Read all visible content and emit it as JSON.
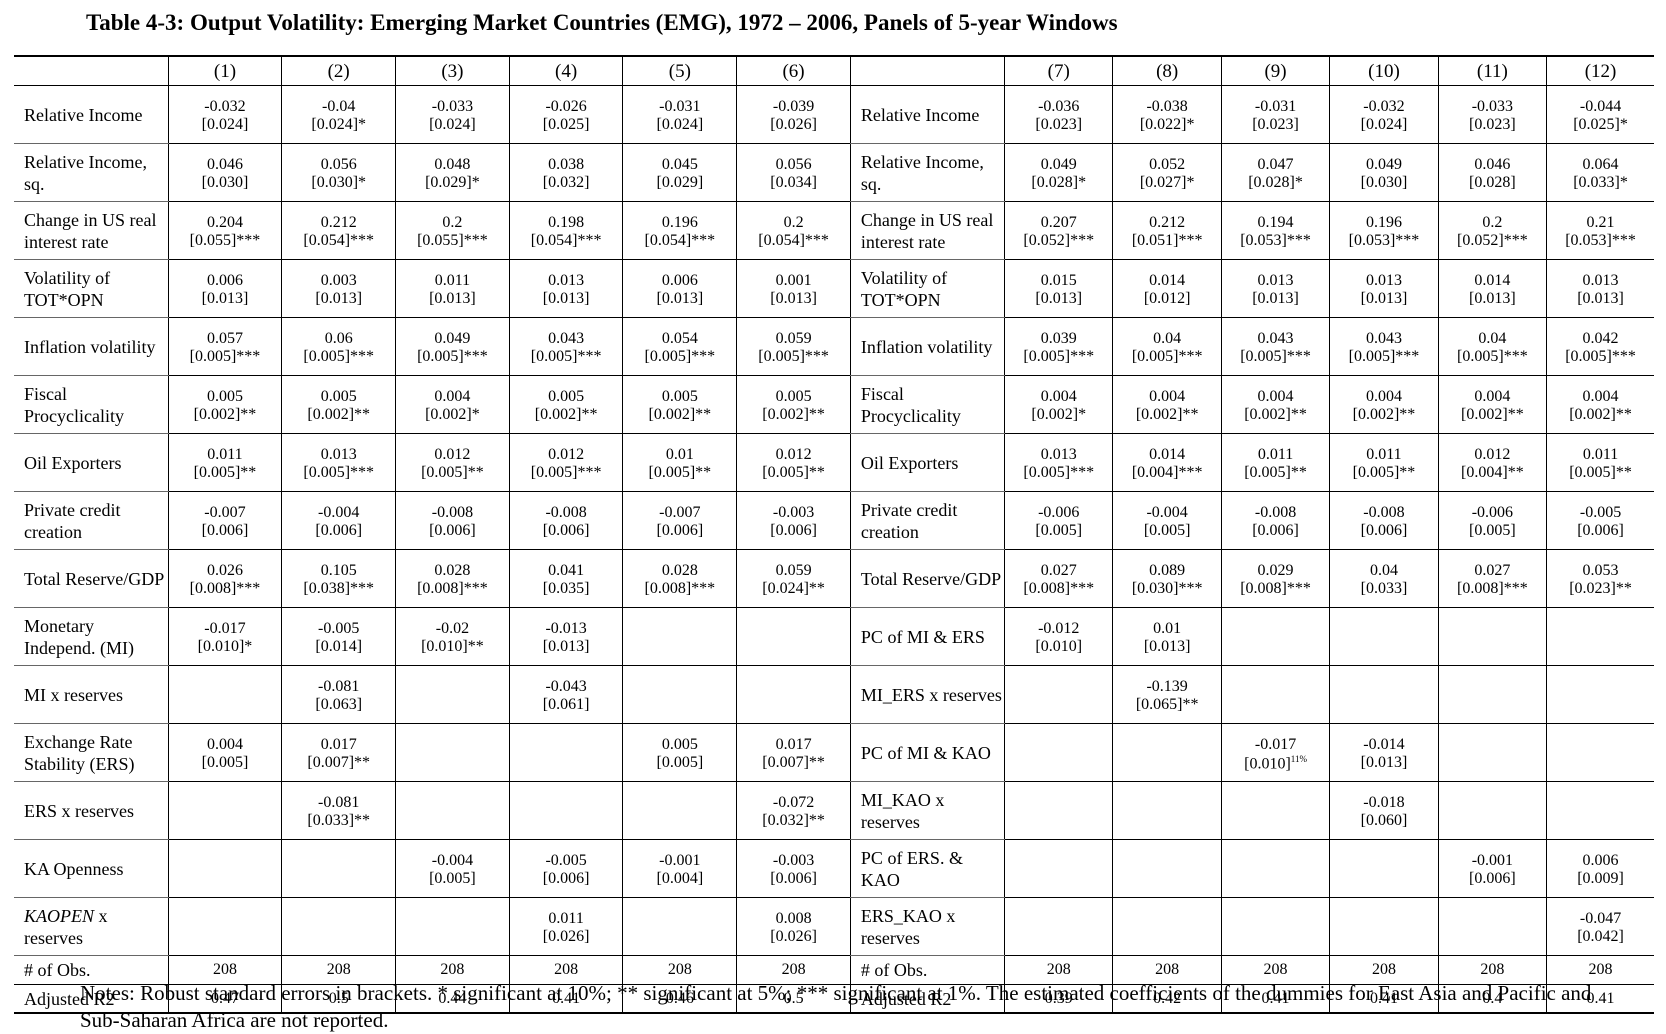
{
  "title": "Table 4-3: Output Volatility: Emerging Market Countries (EMG), 1972 – 2006, Panels of 5-year Windows",
  "left_columns": [
    "(1)",
    "(2)",
    "(3)",
    "(4)",
    "(5)",
    "(6)"
  ],
  "right_columns": [
    "(7)",
    "(8)",
    "(9)",
    "(10)",
    "(11)",
    "(12)"
  ],
  "rows": [
    {
      "left_label": "Relative Income",
      "right_label": "Relative Income",
      "left": [
        [
          "-0.032",
          "[0.024]"
        ],
        [
          "-0.04",
          "[0.024]*"
        ],
        [
          "-0.033",
          "[0.024]"
        ],
        [
          "-0.026",
          "[0.025]"
        ],
        [
          "-0.031",
          "[0.024]"
        ],
        [
          "-0.039",
          "[0.026]"
        ]
      ],
      "right": [
        [
          "-0.036",
          "[0.023]"
        ],
        [
          "-0.038",
          "[0.022]*"
        ],
        [
          "-0.031",
          "[0.023]"
        ],
        [
          "-0.032",
          "[0.024]"
        ],
        [
          "-0.033",
          "[0.023]"
        ],
        [
          "-0.044",
          "[0.025]*"
        ]
      ]
    },
    {
      "left_label": "Relative Income, sq.",
      "right_label": "Relative Income, sq.",
      "left": [
        [
          "0.046",
          "[0.030]"
        ],
        [
          "0.056",
          "[0.030]*"
        ],
        [
          "0.048",
          "[0.029]*"
        ],
        [
          "0.038",
          "[0.032]"
        ],
        [
          "0.045",
          "[0.029]"
        ],
        [
          "0.056",
          "[0.034]"
        ]
      ],
      "right": [
        [
          "0.049",
          "[0.028]*"
        ],
        [
          "0.052",
          "[0.027]*"
        ],
        [
          "0.047",
          "[0.028]*"
        ],
        [
          "0.049",
          "[0.030]"
        ],
        [
          "0.046",
          "[0.028]"
        ],
        [
          "0.064",
          "[0.033]*"
        ]
      ]
    },
    {
      "left_label": "Change in US real interest rate",
      "right_label": "Change in US real interest rate",
      "left": [
        [
          "0.204",
          "[0.055]***"
        ],
        [
          "0.212",
          "[0.054]***"
        ],
        [
          "0.2",
          "[0.055]***"
        ],
        [
          "0.198",
          "[0.054]***"
        ],
        [
          "0.196",
          "[0.054]***"
        ],
        [
          "0.2",
          "[0.054]***"
        ]
      ],
      "right": [
        [
          "0.207",
          "[0.052]***"
        ],
        [
          "0.212",
          "[0.051]***"
        ],
        [
          "0.194",
          "[0.053]***"
        ],
        [
          "0.196",
          "[0.053]***"
        ],
        [
          "0.2",
          "[0.052]***"
        ],
        [
          "0.21",
          "[0.053]***"
        ]
      ]
    },
    {
      "left_label": "Volatility of TOT*OPN",
      "right_label": "Volatility of TOT*OPN",
      "left": [
        [
          "0.006",
          "[0.013]"
        ],
        [
          "0.003",
          "[0.013]"
        ],
        [
          "0.011",
          "[0.013]"
        ],
        [
          "0.013",
          "[0.013]"
        ],
        [
          "0.006",
          "[0.013]"
        ],
        [
          "0.001",
          "[0.013]"
        ]
      ],
      "right": [
        [
          "0.015",
          "[0.013]"
        ],
        [
          "0.014",
          "[0.012]"
        ],
        [
          "0.013",
          "[0.013]"
        ],
        [
          "0.013",
          "[0.013]"
        ],
        [
          "0.014",
          "[0.013]"
        ],
        [
          "0.013",
          "[0.013]"
        ]
      ]
    },
    {
      "left_label": "Inflation volatility",
      "right_label": "Inflation volatility",
      "left": [
        [
          "0.057",
          "[0.005]***"
        ],
        [
          "0.06",
          "[0.005]***"
        ],
        [
          "0.049",
          "[0.005]***"
        ],
        [
          "0.043",
          "[0.005]***"
        ],
        [
          "0.054",
          "[0.005]***"
        ],
        [
          "0.059",
          "[0.005]***"
        ]
      ],
      "right": [
        [
          "0.039",
          "[0.005]***"
        ],
        [
          "0.04",
          "[0.005]***"
        ],
        [
          "0.043",
          "[0.005]***"
        ],
        [
          "0.043",
          "[0.005]***"
        ],
        [
          "0.04",
          "[0.005]***"
        ],
        [
          "0.042",
          "[0.005]***"
        ]
      ]
    },
    {
      "left_label": "Fiscal Procyclicality",
      "right_label": "Fiscal Procyclicality",
      "left": [
        [
          "0.005",
          "[0.002]**"
        ],
        [
          "0.005",
          "[0.002]**"
        ],
        [
          "0.004",
          "[0.002]*"
        ],
        [
          "0.005",
          "[0.002]**"
        ],
        [
          "0.005",
          "[0.002]**"
        ],
        [
          "0.005",
          "[0.002]**"
        ]
      ],
      "right": [
        [
          "0.004",
          "[0.002]*"
        ],
        [
          "0.004",
          "[0.002]**"
        ],
        [
          "0.004",
          "[0.002]**"
        ],
        [
          "0.004",
          "[0.002]**"
        ],
        [
          "0.004",
          "[0.002]**"
        ],
        [
          "0.004",
          "[0.002]**"
        ]
      ]
    },
    {
      "left_label": "Oil Exporters",
      "right_label": "Oil Exporters",
      "left": [
        [
          "0.011",
          "[0.005]**"
        ],
        [
          "0.013",
          "[0.005]***"
        ],
        [
          "0.012",
          "[0.005]**"
        ],
        [
          "0.012",
          "[0.005]***"
        ],
        [
          "0.01",
          "[0.005]**"
        ],
        [
          "0.012",
          "[0.005]**"
        ]
      ],
      "right": [
        [
          "0.013",
          "[0.005]***"
        ],
        [
          "0.014",
          "[0.004]***"
        ],
        [
          "0.011",
          "[0.005]**"
        ],
        [
          "0.011",
          "[0.005]**"
        ],
        [
          "0.012",
          "[0.004]**"
        ],
        [
          "0.011",
          "[0.005]**"
        ]
      ]
    },
    {
      "left_label": "Private credit creation",
      "right_label": "Private credit creation",
      "left": [
        [
          "-0.007",
          "[0.006]"
        ],
        [
          "-0.004",
          "[0.006]"
        ],
        [
          "-0.008",
          "[0.006]"
        ],
        [
          "-0.008",
          "[0.006]"
        ],
        [
          "-0.007",
          "[0.006]"
        ],
        [
          "-0.003",
          "[0.006]"
        ]
      ],
      "right": [
        [
          "-0.006",
          "[0.005]"
        ],
        [
          "-0.004",
          "[0.005]"
        ],
        [
          "-0.008",
          "[0.006]"
        ],
        [
          "-0.008",
          "[0.006]"
        ],
        [
          "-0.006",
          "[0.005]"
        ],
        [
          "-0.005",
          "[0.006]"
        ]
      ]
    },
    {
      "left_label": "Total Reserve/GDP",
      "right_label": "Total Reserve/GDP",
      "left": [
        [
          "0.026",
          "[0.008]***"
        ],
        [
          "0.105",
          "[0.038]***"
        ],
        [
          "0.028",
          "[0.008]***"
        ],
        [
          "0.041",
          "[0.035]"
        ],
        [
          "0.028",
          "[0.008]***"
        ],
        [
          "0.059",
          "[0.024]**"
        ]
      ],
      "right": [
        [
          "0.027",
          "[0.008]***"
        ],
        [
          "0.089",
          "[0.030]***"
        ],
        [
          "0.029",
          "[0.008]***"
        ],
        [
          "0.04",
          "[0.033]"
        ],
        [
          "0.027",
          "[0.008]***"
        ],
        [
          "0.053",
          "[0.023]**"
        ]
      ]
    },
    {
      "left_label": "Monetary Independ. (MI)",
      "right_label": "PC of MI & ERS",
      "section_break": true,
      "left": [
        [
          "-0.017",
          "[0.010]*"
        ],
        [
          "-0.005",
          "[0.014]"
        ],
        [
          "-0.02",
          "[0.010]**"
        ],
        [
          "-0.013",
          "[0.013]"
        ],
        [
          "",
          ""
        ],
        [
          "",
          ""
        ]
      ],
      "right": [
        [
          "-0.012",
          "[0.010]"
        ],
        [
          "0.01",
          "[0.013]"
        ],
        [
          "",
          ""
        ],
        [
          "",
          ""
        ],
        [
          "",
          ""
        ],
        [
          "",
          ""
        ]
      ]
    },
    {
      "left_label": "MI x reserves",
      "right_label": "MI_ERS x reserves",
      "left": [
        [
          "",
          ""
        ],
        [
          "-0.081",
          "[0.063]"
        ],
        [
          "",
          ""
        ],
        [
          "-0.043",
          "[0.061]"
        ],
        [
          "",
          ""
        ],
        [
          "",
          ""
        ]
      ],
      "right": [
        [
          "",
          ""
        ],
        [
          "-0.139",
          "[0.065]**"
        ],
        [
          "",
          ""
        ],
        [
          "",
          ""
        ],
        [
          "",
          ""
        ],
        [
          "",
          ""
        ]
      ]
    },
    {
      "left_label": "Exchange Rate Stability (ERS)",
      "right_label": "PC of MI & KAO",
      "left": [
        [
          "0.004",
          "[0.005]"
        ],
        [
          "0.017",
          "[0.007]**"
        ],
        [
          "",
          ""
        ],
        [
          "",
          ""
        ],
        [
          "0.005",
          "[0.005]"
        ],
        [
          "0.017",
          "[0.007]**"
        ]
      ],
      "right": [
        [
          "",
          ""
        ],
        [
          "",
          ""
        ],
        [
          "-0.017",
          "[0.010]"
        ],
        [
          "-0.014",
          "[0.013]"
        ],
        [
          "",
          ""
        ],
        [
          "",
          ""
        ]
      ]
    },
    {
      "left_label": "ERS x reserves",
      "right_label": "MI_KAO x reserves",
      "left": [
        [
          "",
          ""
        ],
        [
          "-0.081",
          "[0.033]**"
        ],
        [
          "",
          ""
        ],
        [
          "",
          ""
        ],
        [
          "",
          ""
        ],
        [
          "-0.072",
          "[0.032]**"
        ]
      ],
      "right": [
        [
          "",
          ""
        ],
        [
          "",
          ""
        ],
        [
          "",
          ""
        ],
        [
          "-0.018",
          "[0.060]"
        ],
        [
          "",
          ""
        ],
        [
          "",
          ""
        ]
      ]
    },
    {
      "left_label": "KA Openness",
      "right_label": "PC of ERS. & KAO",
      "left": [
        [
          "",
          ""
        ],
        [
          "",
          ""
        ],
        [
          "-0.004",
          "[0.005]"
        ],
        [
          "-0.005",
          "[0.006]"
        ],
        [
          "-0.001",
          "[0.004]"
        ],
        [
          "-0.003",
          "[0.006]"
        ]
      ],
      "right": [
        [
          "",
          ""
        ],
        [
          "",
          ""
        ],
        [
          "",
          ""
        ],
        [
          "",
          ""
        ],
        [
          "-0.001",
          "[0.006]"
        ],
        [
          "0.006",
          "[0.009]"
        ]
      ]
    },
    {
      "left_label_italic": "KAOPEN",
      "left_label": " x reserves",
      "right_label": "ERS_KAO x reserves",
      "left": [
        [
          "",
          ""
        ],
        [
          "",
          ""
        ],
        [
          "",
          ""
        ],
        [
          "0.011",
          "[0.026]"
        ],
        [
          "",
          ""
        ],
        [
          "0.008",
          "[0.026]"
        ]
      ],
      "right": [
        [
          "",
          ""
        ],
        [
          "",
          ""
        ],
        [
          "",
          ""
        ],
        [
          "",
          ""
        ],
        [
          "",
          ""
        ],
        [
          "-0.047",
          "[0.042]"
        ]
      ]
    }
  ],
  "sup_note": "11%",
  "obs": {
    "label": "# of Obs.",
    "left": [
      "208",
      "208",
      "208",
      "208",
      "208",
      "208"
    ],
    "right": [
      "208",
      "208",
      "208",
      "208",
      "208",
      "208"
    ]
  },
  "r2": {
    "label": "Adjusted R2",
    "left": [
      "0.47",
      "0.5",
      "0.44",
      "0.41",
      "0.46",
      "0.5"
    ],
    "right": [
      "0.39",
      "0.42",
      "0.41",
      "0.41",
      "0.4",
      "0.41"
    ]
  },
  "notes": "Notes: Robust standard errors in brackets.  * significant at 10%; ** significant at 5%; *** significant at 1%. The estimated coefficients of the dummies for East Asia and Pacific and Sub-Saharan Africa are not reported."
}
